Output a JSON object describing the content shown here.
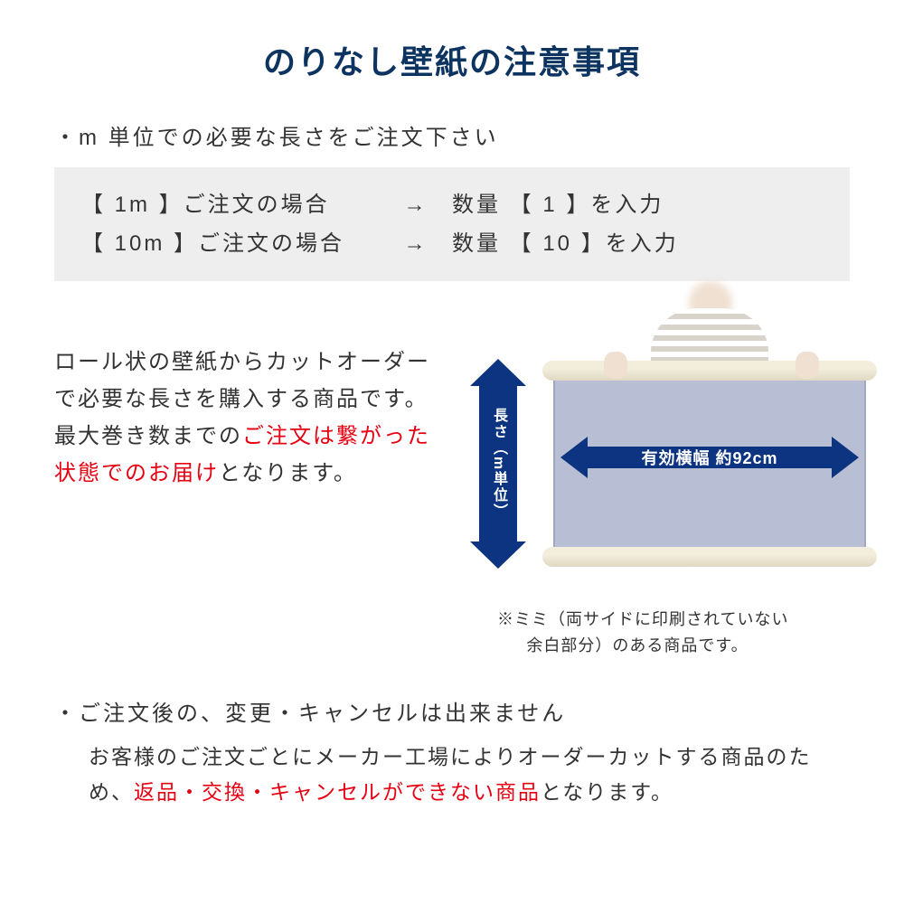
{
  "title": "のりなし壁紙の注意事項",
  "section1": {
    "bullet": "・m 単位での必要な長さをご注文下さい",
    "examples": [
      {
        "left": "【 1m 】ご注文の場合",
        "arrow": "→",
        "right": "数量 【 1 】を入力"
      },
      {
        "left": "【 10m 】ご注文の場合",
        "arrow": "→",
        "right": "数量 【 10 】を入力"
      }
    ]
  },
  "description": {
    "part1": "ロール状の壁紙からカットオーダーで必要な長さを購入する商品です。最大巻き数までの",
    "red": "ご注文は繋がった状態でのお届け",
    "part2": "となります。"
  },
  "diagram": {
    "width_label": "有効横幅 約92cm",
    "length_label": "長さ（m単位）",
    "colors": {
      "arrow": "#0d3480",
      "sheet": "#b8bfd4",
      "roll": "#f3eddc"
    }
  },
  "note_line1": "※ミミ（両サイドに印刷されていない",
  "note_line2": "余白部分）のある商品です。",
  "section2": {
    "bullet": "・ご注文後の、変更・キャンセルは出来ません",
    "part1": "お客様のご注文ごとにメーカー工場によりオーダーカットする商品のため、",
    "red": "返品・交換・キャンセルができない商品",
    "part2": "となります。"
  }
}
